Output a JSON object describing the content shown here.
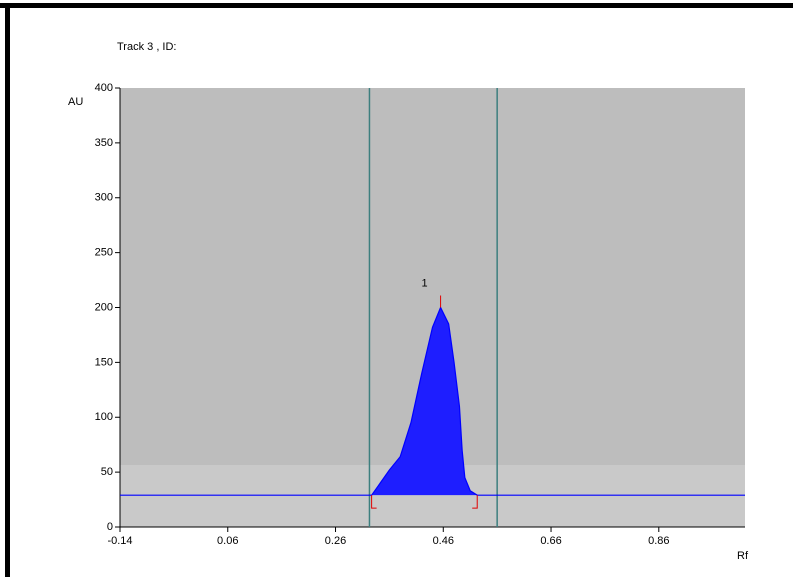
{
  "chart_data": {
    "type": "line",
    "title": "Track 3 , ID:",
    "y_label": "AU",
    "x_label": "Rf",
    "x": [
      -0.14,
      0.327,
      0.34,
      0.36,
      0.38,
      0.4,
      0.42,
      0.44,
      0.455,
      0.47,
      0.48,
      0.49,
      0.495,
      0.5,
      0.51,
      0.523,
      1.02
    ],
    "values": [
      29,
      29,
      38,
      52,
      64,
      95,
      140,
      182,
      200,
      185,
      150,
      110,
      70,
      45,
      33,
      29,
      29
    ],
    "color": "#0000ff",
    "fill_color": "#1e1eff",
    "xlim": [
      -0.14,
      1.02
    ],
    "ylim": [
      0,
      400
    ],
    "xticks": [
      -0.14,
      0.06,
      0.26,
      0.46,
      0.66,
      0.86
    ],
    "yticks": [
      0,
      50,
      100,
      150,
      200,
      250,
      300,
      350,
      400
    ],
    "peak": {
      "label": "1",
      "start": 0.327,
      "apex": 0.455,
      "end": 0.523
    },
    "window": [
      0.323,
      0.56
    ]
  }
}
